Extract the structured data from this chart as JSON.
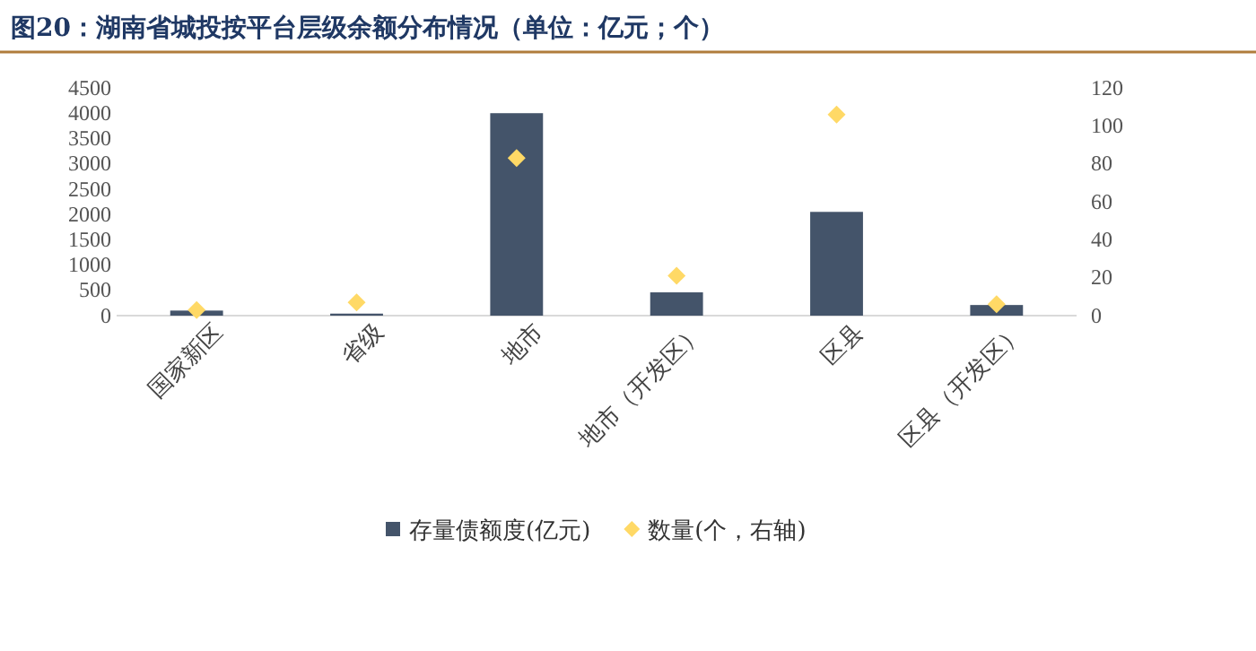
{
  "chart_data": {
    "type": "bar",
    "title": "图20：湖南省城投按平台层级余额分布情况（单位：亿元；个）",
    "categories": [
      "国家新区",
      "省级",
      "地市",
      "地市（开发区）",
      "区县",
      "区县（开发区）"
    ],
    "series": [
      {
        "name": "存量债额度(亿元)",
        "color": "#44546a",
        "values": [
          100,
          40,
          4000,
          460,
          2050,
          210
        ]
      },
      {
        "name": "数量(个，右轴)",
        "type": "scatter",
        "axis": "y2",
        "marker": "diamond",
        "color": "#ffd966",
        "values": [
          3,
          7,
          83,
          21,
          106,
          6
        ]
      }
    ],
    "ylim": [
      0,
      4500
    ],
    "yticks": [
      0,
      500,
      1000,
      1500,
      2000,
      2500,
      3000,
      3500,
      4000,
      4500
    ],
    "y2lim": [
      0,
      120
    ],
    "y2ticks": [
      0,
      20,
      40,
      60,
      80,
      100,
      120
    ],
    "legend": "bottom",
    "grid": false
  }
}
